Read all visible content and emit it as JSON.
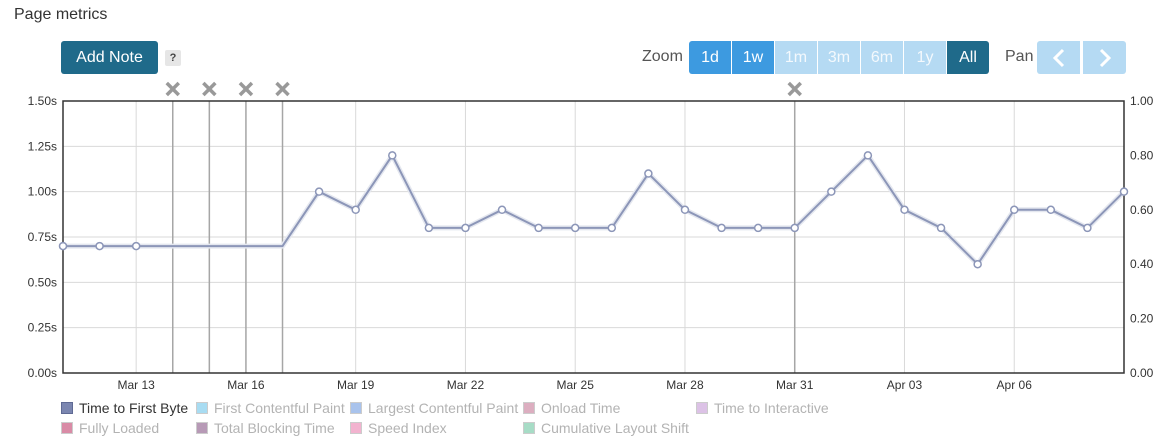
{
  "header": {
    "title": "Page metrics"
  },
  "toolbar": {
    "add_note_label": "Add Note",
    "help_label": "?",
    "zoom_label": "Zoom",
    "zoom_options": [
      {
        "label": "1d",
        "state": "active"
      },
      {
        "label": "1w",
        "state": "active"
      },
      {
        "label": "1m",
        "state": "disabled"
      },
      {
        "label": "3m",
        "state": "disabled"
      },
      {
        "label": "6m",
        "state": "disabled"
      },
      {
        "label": "1y",
        "state": "disabled"
      },
      {
        "label": "All",
        "state": "selected"
      }
    ],
    "pan_label": "Pan"
  },
  "icons": {
    "pan_prev": "chevron-left-icon",
    "pan_next": "chevron-right-icon",
    "note_marker": "close-x-icon"
  },
  "colors": {
    "line": "#8c96b8",
    "grid": "#d9d9d9",
    "note_line": "#a6a6a6",
    "marker": "#999999",
    "axis": "#333333"
  },
  "chart_data": {
    "type": "line",
    "x_start": "Mar 11",
    "x_end": "Apr 09",
    "x_tick_labels": [
      "Mar 13",
      "Mar 16",
      "Mar 19",
      "Mar 22",
      "Mar 25",
      "Mar 28",
      "Mar 31",
      "Apr 03",
      "Apr 06"
    ],
    "y_left_ticks": [
      "0.00s",
      "0.25s",
      "0.50s",
      "0.75s",
      "1.00s",
      "1.25s",
      "1.50s"
    ],
    "y_left_range": [
      0,
      1.5
    ],
    "y_right_ticks": [
      "0.00",
      "0.20",
      "0.40",
      "0.60",
      "0.80",
      "1.00"
    ],
    "y_right_range": [
      0,
      1
    ],
    "grid": true,
    "note_markers_days": [
      3,
      4,
      5,
      6,
      20
    ],
    "series": [
      {
        "name": "Time to First Byte",
        "day": [
          0,
          1,
          2,
          7,
          8,
          9,
          10,
          11,
          12,
          13,
          14,
          15,
          16,
          17,
          18,
          19,
          20,
          21,
          22,
          23,
          24,
          25,
          26,
          27,
          28,
          29
        ],
        "values": [
          0.7,
          0.7,
          0.7,
          1.0,
          0.9,
          1.2,
          0.8,
          0.8,
          0.9,
          0.8,
          0.8,
          0.8,
          1.1,
          0.9,
          0.8,
          0.8,
          0.8,
          1.0,
          1.2,
          0.9,
          0.8,
          0.6,
          0.9,
          0.9,
          0.8,
          1.0
        ]
      }
    ],
    "legend": [
      {
        "name": "Time to First Byte",
        "color": "#7b86b0",
        "enabled": true
      },
      {
        "name": "First Contentful Paint",
        "color": "#a8dcf2",
        "enabled": false
      },
      {
        "name": "Largest Contentful Paint",
        "color": "#a9c3ec",
        "enabled": false
      },
      {
        "name": "Onload Time",
        "color": "#dcaec0",
        "enabled": false
      },
      {
        "name": "Time to Interactive",
        "color": "#dcc2e6",
        "enabled": false
      },
      {
        "name": "Fully Loaded",
        "color": "#d98ba6",
        "enabled": false
      },
      {
        "name": "Total Blocking Time",
        "color": "#b79ab6",
        "enabled": false
      },
      {
        "name": "Speed Index",
        "color": "#f2b3cf",
        "enabled": false
      },
      {
        "name": "Cumulative Layout Shift",
        "color": "#a7dcc6",
        "enabled": false
      }
    ]
  }
}
